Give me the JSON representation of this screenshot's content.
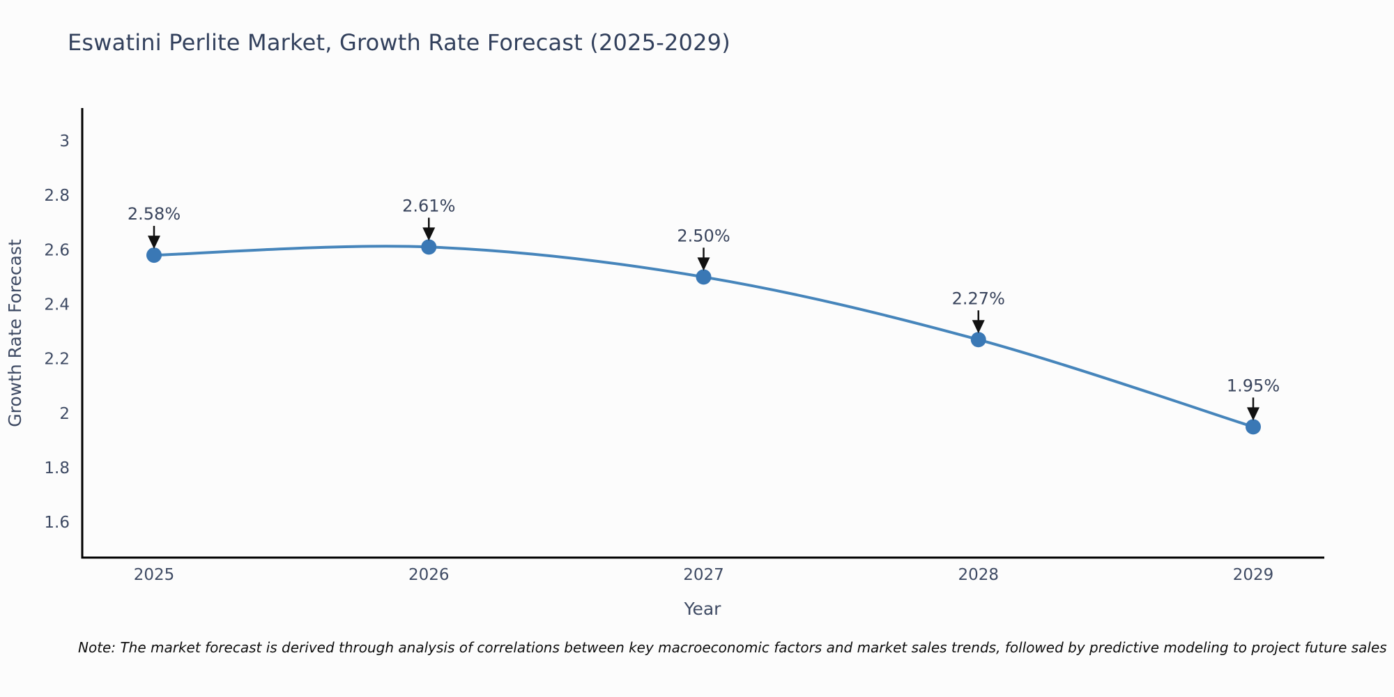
{
  "header": {
    "title": "Eswatini Perlite Market, Growth Rate Forecast (2025-2029)"
  },
  "chart_data": {
    "type": "line",
    "title": "Eswatini Perlite Market, Growth Rate Forecast (2025-2029)",
    "x": [
      2025,
      2026,
      2027,
      2028,
      2029
    ],
    "series": [
      {
        "name": "Growth Rate Forecast",
        "values": [
          2.58,
          2.61,
          2.5,
          2.27,
          1.95
        ]
      }
    ],
    "point_labels": [
      "2.58%",
      "2.61%",
      "2.50%",
      "2.27%",
      "1.95%"
    ],
    "xlabel": "Year",
    "ylabel": "Growth Rate Forecast",
    "xtick_labels": [
      "2025",
      "2026",
      "2027",
      "2028",
      "2029"
    ],
    "yticks": [
      3,
      2.8,
      2.6,
      2.4,
      2.2,
      2,
      1.8,
      1.6
    ],
    "ytick_labels": [
      "3",
      "2.8",
      "2.6",
      "2.4",
      "2.2",
      "2",
      "1.8",
      "1.6"
    ],
    "ylim": [
      1.47,
      3.12
    ],
    "grid": false,
    "legend": false,
    "line_color": "#4685bb",
    "marker_color": "#3a78b5",
    "axis_color": "#000000",
    "annotation_color": "#111111"
  },
  "note": "Note: The market forecast is derived through analysis of correlations between key macroeconomic factors and market sales trends, followed by predictive modeling to project future sales"
}
